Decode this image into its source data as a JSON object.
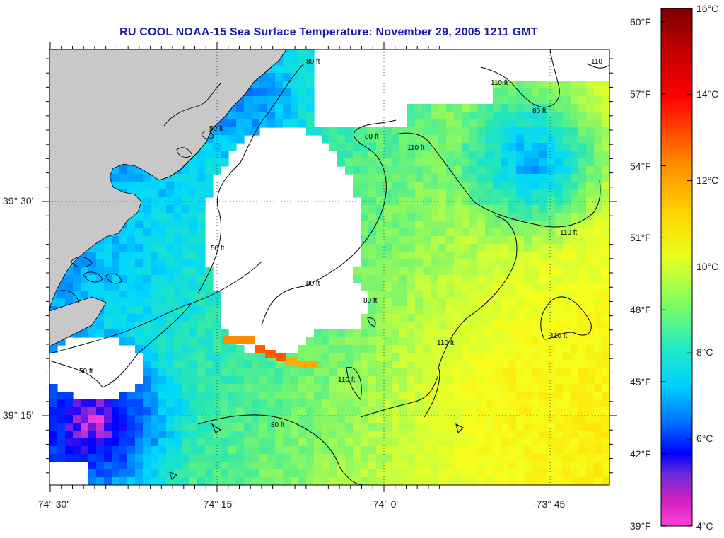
{
  "title": "RU COOL  NOAA-15  Sea Surface Temperature:  November 29, 2005 1211 GMT",
  "map": {
    "lon_labels": [
      "-74° 30'",
      "-74° 15'",
      "-74° 0'",
      "-73° 45'"
    ],
    "lat_labels": [
      "39° 30'",
      "39° 15'"
    ],
    "land_color": "#c8c8c8",
    "gap_color": "#ffffff",
    "contour_labels": [
      "50 ft",
      "50 ft",
      "80 ft",
      "80 ft",
      "80 ft",
      "80 ft",
      "110 ft",
      "110 ft",
      "110 ft",
      "110 ft",
      "110 ft",
      "110 ft",
      "80 ft",
      "110",
      "80 ft",
      "50 ft"
    ]
  },
  "colorbar": {
    "fahrenheit_labels": [
      "60°F",
      "57°F",
      "54°F",
      "51°F",
      "48°F",
      "45°F",
      "42°F",
      "39°F"
    ],
    "celsius_labels": [
      "16°C",
      "14°C",
      "12°C",
      "10°C",
      "8°C",
      "6°C",
      "4°C"
    ],
    "colors": [
      "#8b0000",
      "#ff1a1a",
      "#ff8c00",
      "#ffe600",
      "#c8ff33",
      "#33ff99",
      "#00e5ff",
      "#0099ff",
      "#0000ff",
      "#8a2be2",
      "#ff1493",
      "#ff3ccf"
    ]
  }
}
